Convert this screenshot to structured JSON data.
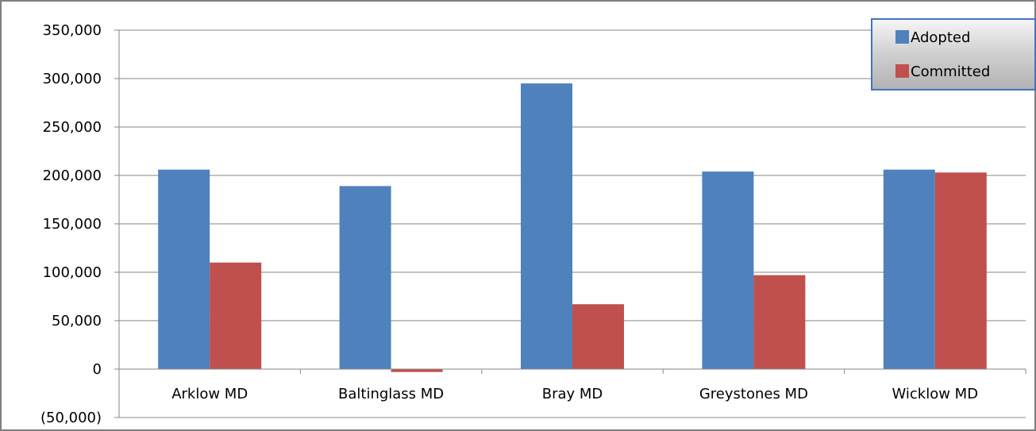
{
  "chart_data": {
    "type": "bar",
    "title": "",
    "xlabel": "",
    "ylabel": "",
    "categories": [
      "Arklow MD",
      "Baltinglass MD",
      "Bray MD",
      "Greystones MD",
      "Wicklow MD"
    ],
    "series": [
      {
        "name": "Adopted",
        "color": "#4F81BD",
        "values": [
          206000,
          189000,
          295000,
          204000,
          206000
        ]
      },
      {
        "name": "Committed",
        "color": "#C0504D",
        "values": [
          110000,
          -3000,
          67000,
          97000,
          203000
        ]
      }
    ],
    "ylim": [
      -50000,
      350000
    ],
    "y_ticks": [
      350000,
      300000,
      250000,
      200000,
      150000,
      100000,
      50000,
      0,
      -50000
    ],
    "y_tick_labels": [
      "350,000",
      "300,000",
      "250,000",
      "200,000",
      "150,000",
      "100,000",
      "50,000",
      "0",
      "(50,000)"
    ],
    "grid": true,
    "legend_position": "top-right"
  }
}
